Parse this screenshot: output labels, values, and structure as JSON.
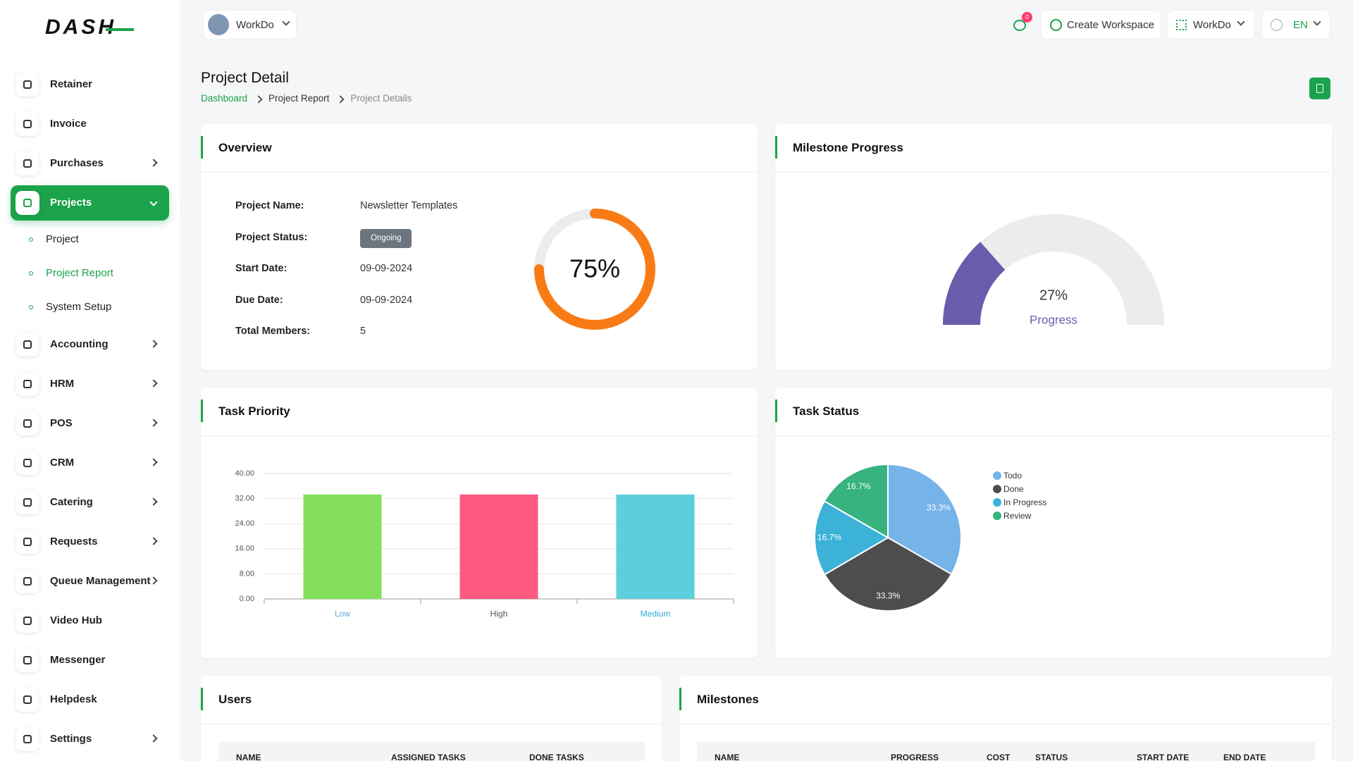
{
  "header": {
    "workspace": "WorkDo",
    "notifications": 0,
    "create_workspace": "Create Workspace",
    "company": "WorkDo",
    "language": "EN"
  },
  "sidebar": {
    "logo": "DASH",
    "items": [
      {
        "label": "Retainer"
      },
      {
        "label": "Invoice"
      },
      {
        "label": "Purchases",
        "submenu": true
      },
      {
        "label": "Projects",
        "submenu": true,
        "active": true,
        "children": [
          "Project",
          "Project Report",
          "System Setup"
        ],
        "active_child": 1
      },
      {
        "label": "Accounting",
        "submenu": true
      },
      {
        "label": "HRM",
        "submenu": true
      },
      {
        "label": "POS",
        "submenu": true
      },
      {
        "label": "CRM",
        "submenu": true
      },
      {
        "label": "Catering",
        "submenu": true
      },
      {
        "label": "Requests",
        "submenu": true
      },
      {
        "label": "Queue Management",
        "submenu": true
      },
      {
        "label": "Video Hub"
      },
      {
        "label": "Messenger"
      },
      {
        "label": "Helpdesk"
      },
      {
        "label": "Settings",
        "submenu": true
      }
    ]
  },
  "page": {
    "title": "Project Detail",
    "breadcrumb": [
      "Dashboard",
      "Project Report",
      "Project Details"
    ]
  },
  "overview": {
    "title": "Overview",
    "fields": [
      {
        "label": "Project Name:",
        "value": "Newsletter Templates"
      },
      {
        "label": "Project Status:",
        "value": "Ongoing",
        "badge": true
      },
      {
        "label": "Start Date:",
        "value": "09-09-2024"
      },
      {
        "label": "Due Date:",
        "value": "09-09-2024"
      },
      {
        "label": "Total Members:",
        "value": "5"
      }
    ]
  },
  "chart_data": [
    {
      "type": "radial",
      "values": [
        75
      ],
      "value_labels": [
        "75%"
      ],
      "ylim": [
        0,
        100
      ],
      "color": "#f97b16",
      "track_color": "#ececec"
    },
    {
      "type": "gauge",
      "title": "Milestone Progress",
      "values": [
        27
      ],
      "value_labels": [
        "27%"
      ],
      "caption": "Progress",
      "ylim": [
        0,
        100
      ],
      "color": "#6b5cab",
      "track_color": "#ececec"
    },
    {
      "type": "bar",
      "title": "Task Priority",
      "categories": [
        "Low",
        "High",
        "Medium"
      ],
      "values": [
        33.3,
        33.3,
        33.3
      ],
      "colors": [
        "#84e05c",
        "#ff5a82",
        "#5bcfdb"
      ],
      "tick_label_colors": [
        "#5ba8d8",
        "#555555",
        "#2fa9d6"
      ],
      "ylim": [
        0,
        40
      ],
      "yticks": [
        {
          "value": 0,
          "label": "0.00"
        },
        {
          "value": 8,
          "label": "8.00"
        },
        {
          "value": 16,
          "label": "16.00"
        },
        {
          "value": 24,
          "label": "24.00"
        },
        {
          "value": 32,
          "label": "32.00"
        },
        {
          "value": 40,
          "label": "40.00"
        }
      ],
      "grid": true
    },
    {
      "type": "pie",
      "title": "Task Status",
      "categories": [
        "Todo",
        "Done",
        "In Progress",
        "Review"
      ],
      "values": [
        33.3,
        33.3,
        16.7,
        16.7
      ],
      "value_labels": [
        "33.3%",
        "33.3%",
        "16.7%",
        "16.7%"
      ],
      "colors": [
        "#75b3e8",
        "#4d4d4d",
        "#3db2d9",
        "#36b37e"
      ]
    }
  ],
  "users": {
    "title": "Users",
    "columns": [
      "NAME",
      "ASSIGNED TASKS",
      "DONE TASKS"
    ]
  },
  "milestones": {
    "title": "Milestones",
    "columns": [
      "NAME",
      "PROGRESS",
      "COST",
      "STATUS",
      "START DATE",
      "END DATE"
    ]
  }
}
